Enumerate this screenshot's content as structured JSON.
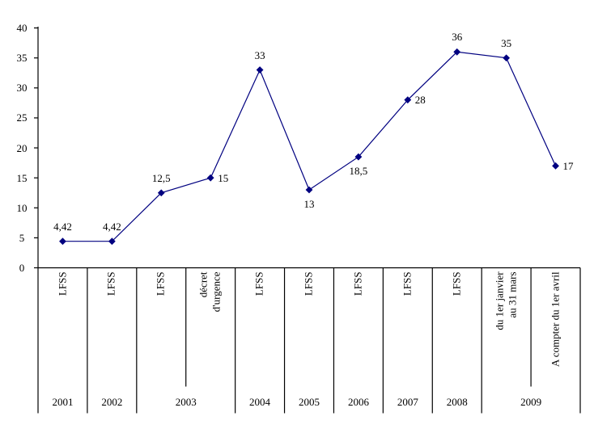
{
  "chart_data": {
    "type": "line",
    "title": "",
    "legend": "none",
    "grid": false,
    "ylim": [
      0,
      40
    ],
    "ytick_step": 5,
    "yticks": [
      {
        "value": 0,
        "label": "0"
      },
      {
        "value": 5,
        "label": "5"
      },
      {
        "value": 10,
        "label": "10"
      },
      {
        "value": 15,
        "label": "15"
      },
      {
        "value": 20,
        "label": "20"
      },
      {
        "value": 25,
        "label": "25"
      },
      {
        "value": 30,
        "label": "30"
      },
      {
        "value": 35,
        "label": "35"
      },
      {
        "value": 40,
        "label": "40"
      }
    ],
    "colors": {
      "series": "#000080",
      "axis": "#000000",
      "text": "#000000",
      "background": "#ffffff"
    },
    "points": [
      {
        "year": "2001",
        "category_lines": [
          "LFSS"
        ],
        "value": 4.42,
        "value_label": "4,42",
        "label_pos": "above"
      },
      {
        "year": "2002",
        "category_lines": [
          "LFSS"
        ],
        "value": 4.42,
        "value_label": "4,42",
        "label_pos": "above"
      },
      {
        "year": "2003",
        "category_lines": [
          "LFSS"
        ],
        "value": 12.5,
        "value_label": "12,5",
        "label_pos": "above"
      },
      {
        "year": "2003",
        "category_lines": [
          "décret",
          "d'urgence"
        ],
        "value": 15,
        "value_label": "15",
        "label_pos": "right"
      },
      {
        "year": "2004",
        "category_lines": [
          "LFSS"
        ],
        "value": 33,
        "value_label": "33",
        "label_pos": "above"
      },
      {
        "year": "2005",
        "category_lines": [
          "LFSS"
        ],
        "value": 13,
        "value_label": "13",
        "label_pos": "below"
      },
      {
        "year": "2006",
        "category_lines": [
          "LFSS"
        ],
        "value": 18.5,
        "value_label": "18,5",
        "label_pos": "below"
      },
      {
        "year": "2007",
        "category_lines": [
          "LFSS"
        ],
        "value": 28,
        "value_label": "28",
        "label_pos": "right"
      },
      {
        "year": "2008",
        "category_lines": [
          "LFSS"
        ],
        "value": 36,
        "value_label": "36",
        "label_pos": "above"
      },
      {
        "year": "2009",
        "category_lines": [
          "du 1er janvier",
          "au 31 mars"
        ],
        "value": 35,
        "value_label": "35",
        "label_pos": "above"
      },
      {
        "year": "2009",
        "category_lines": [
          "A compter du 1er avril"
        ],
        "value": 17,
        "value_label": "17",
        "label_pos": "right"
      }
    ]
  }
}
